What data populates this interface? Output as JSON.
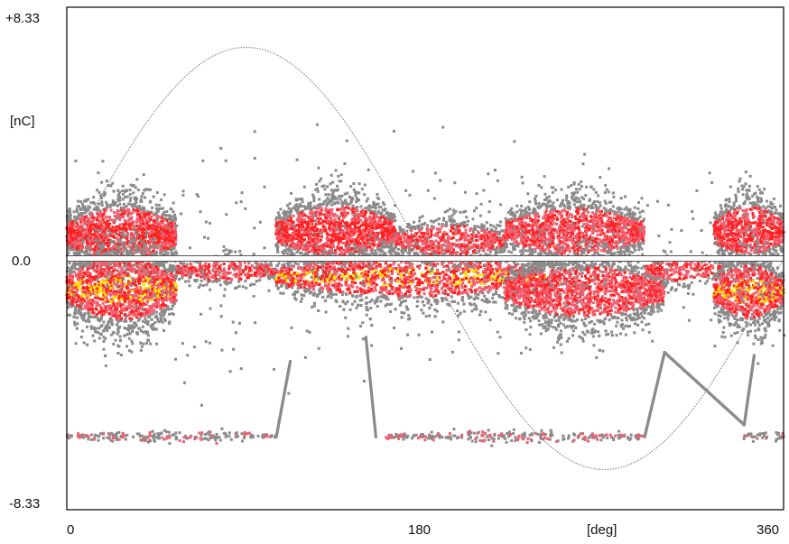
{
  "chart_data": {
    "type": "heatmap",
    "title": "",
    "xlabel": "[deg]",
    "ylabel": "[nC]",
    "xlim": [
      0,
      360
    ],
    "ylim": [
      -8.33,
      8.33
    ],
    "x_ticks": [
      {
        "value": 0,
        "label": "0"
      },
      {
        "value": 180,
        "label": "180"
      },
      {
        "value": 360,
        "label": "360"
      }
    ],
    "y_ticks": [
      {
        "value": 8.33,
        "label": "+8.33"
      },
      {
        "value": 0,
        "label": "0.0"
      },
      {
        "value": -8.33,
        "label": "-8.33"
      }
    ],
    "grid": false,
    "legend": "none",
    "colors": {
      "frame": "#000000",
      "reference_sine": "#888888",
      "zero_line": "#555555",
      "low_density": "#8a8a8a",
      "mid_density": "#f06070",
      "high_density": "#ff2020",
      "peak_density": "#ffe000"
    },
    "reference_sine": {
      "amplitude": 7.0,
      "phase_deg": 0
    },
    "clusters": [
      {
        "x": [
          0,
          55
        ],
        "y_center": 0.8,
        "y_spread": 1.6,
        "intensity": 0.9
      },
      {
        "x": [
          0,
          55
        ],
        "y_center": -1.0,
        "y_spread": 1.9,
        "intensity": 1.0
      },
      {
        "x": [
          55,
          105
        ],
        "y_center": -0.4,
        "y_spread": 0.6,
        "intensity": 0.7
      },
      {
        "x": [
          105,
          165
        ],
        "y_center": 0.9,
        "y_spread": 1.5,
        "intensity": 0.95
      },
      {
        "x": [
          105,
          240
        ],
        "y_center": -0.6,
        "y_spread": 1.2,
        "intensity": 0.9
      },
      {
        "x": [
          165,
          220
        ],
        "y_center": 0.6,
        "y_spread": 0.9,
        "intensity": 0.7
      },
      {
        "x": [
          220,
          290
        ],
        "y_center": 0.9,
        "y_spread": 1.4,
        "intensity": 0.85
      },
      {
        "x": [
          220,
          300
        ],
        "y_center": -1.1,
        "y_spread": 1.5,
        "intensity": 0.85
      },
      {
        "x": [
          290,
          330
        ],
        "y_center": -0.4,
        "y_spread": 0.6,
        "intensity": 0.6
      },
      {
        "x": [
          325,
          360
        ],
        "y_center": 0.9,
        "y_spread": 1.5,
        "intensity": 0.9
      },
      {
        "x": [
          325,
          360
        ],
        "y_center": -1.1,
        "y_spread": 1.6,
        "intensity": 0.9
      },
      {
        "x": [
          0,
          105
        ],
        "y_center": -5.9,
        "y_spread": 0.2,
        "intensity": 0.5
      },
      {
        "x": [
          160,
          290
        ],
        "y_center": -5.9,
        "y_spread": 0.2,
        "intensity": 0.5
      },
      {
        "x": [
          340,
          360
        ],
        "y_center": -5.9,
        "y_spread": 0.2,
        "intensity": 0.45
      }
    ],
    "trace_segments": [
      {
        "x": [
          105,
          112
        ],
        "y": [
          -5.9,
          -3.4
        ]
      },
      {
        "x": [
          150,
          155
        ],
        "y": [
          -2.6,
          -5.9
        ]
      },
      {
        "x": [
          290,
          300
        ],
        "y": [
          -5.9,
          -3.1
        ]
      },
      {
        "x": [
          300,
          340
        ],
        "y": [
          -3.1,
          -5.5
        ]
      },
      {
        "x": [
          340,
          345
        ],
        "y": [
          -5.5,
          -3.2
        ]
      }
    ]
  }
}
